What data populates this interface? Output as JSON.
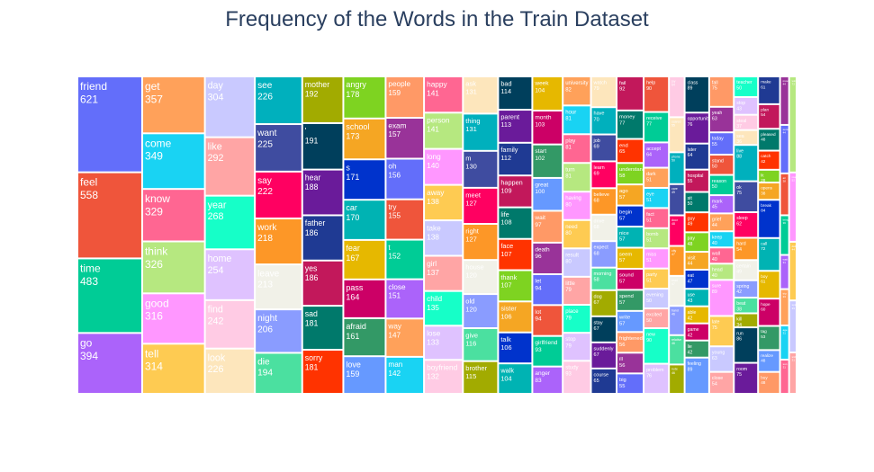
{
  "chart_data": {
    "type": "treemap",
    "title": "Frequency of the Words in the Train Dataset",
    "colors": [
      "#636efa",
      "#EF553B",
      "#00cc96",
      "#ab63fa",
      "#FFA15A",
      "#19d3f3",
      "#FF6692",
      "#B6E880",
      "#FF97FF",
      "#FECB52",
      "#c9c9ff",
      "#ffa5a5",
      "#16ffc8",
      "#dfc2ff",
      "#ffcbe4",
      "#fde6bc",
      "#00b0bd",
      "#3f4ca0",
      "#ff0061",
      "#fd9727",
      "#f1f1e8",
      "#8a9cff",
      "#4be0a0",
      "#a2ab00",
      "#003f5c",
      "#6a1b9a",
      "#1f3a93",
      "#c2185b",
      "#00796b",
      "#ff3300",
      "#7ed321",
      "#f5a623",
      "#0033cc",
      "#00b3b3",
      "#e6b800",
      "#cc0066",
      "#339966",
      "#6699ff",
      "#ff9966",
      "#993399"
    ],
    "items": [
      {
        "word": "friend",
        "count": 621
      },
      {
        "word": "feel",
        "count": 558
      },
      {
        "word": "time",
        "count": 483
      },
      {
        "word": "go",
        "count": 394
      },
      {
        "word": "get",
        "count": 357
      },
      {
        "word": "come",
        "count": 349
      },
      {
        "word": "know",
        "count": 329
      },
      {
        "word": "think",
        "count": 326
      },
      {
        "word": "good",
        "count": 316
      },
      {
        "word": "tell",
        "count": 314
      },
      {
        "word": "day",
        "count": 304
      },
      {
        "word": "like",
        "count": 292
      },
      {
        "word": "year",
        "count": 268
      },
      {
        "word": "home",
        "count": 254
      },
      {
        "word": "find",
        "count": 242
      },
      {
        "word": "look",
        "count": 226
      },
      {
        "word": "see",
        "count": 226
      },
      {
        "word": "want",
        "count": 225
      },
      {
        "word": "say",
        "count": 222
      },
      {
        "word": "work",
        "count": 218
      },
      {
        "word": "leave",
        "count": 213
      },
      {
        "word": "night",
        "count": 206
      },
      {
        "word": "die",
        "count": 194
      },
      {
        "word": "mother",
        "count": 192
      },
      {
        "word": "'",
        "count": 191
      },
      {
        "word": "hear",
        "count": 188
      },
      {
        "word": "father",
        "count": 186
      },
      {
        "word": "yes",
        "count": 186
      },
      {
        "word": "sad",
        "count": 181
      },
      {
        "word": "sorry",
        "count": 181
      },
      {
        "word": "angry",
        "count": 178
      },
      {
        "word": "school",
        "count": 173
      },
      {
        "word": "s",
        "count": 171
      },
      {
        "word": "car",
        "count": 170
      },
      {
        "word": "fear",
        "count": 167
      },
      {
        "word": "pass",
        "count": 164
      },
      {
        "word": "afraid",
        "count": 161
      },
      {
        "word": "love",
        "count": 159
      },
      {
        "word": "people",
        "count": 159
      },
      {
        "word": "exam",
        "count": 157
      },
      {
        "word": "oh",
        "count": 156
      },
      {
        "word": "try",
        "count": 155
      },
      {
        "word": "t",
        "count": 152
      },
      {
        "word": "close",
        "count": 151
      },
      {
        "word": "way",
        "count": 147
      },
      {
        "word": "man",
        "count": 142
      },
      {
        "word": "happy",
        "count": 141
      },
      {
        "word": "person",
        "count": 141
      },
      {
        "word": "long",
        "count": 140
      },
      {
        "word": "away",
        "count": 138
      },
      {
        "word": "take",
        "count": 138
      },
      {
        "word": "girl",
        "count": 137
      },
      {
        "word": "child",
        "count": 135
      },
      {
        "word": "lose",
        "count": 133
      },
      {
        "word": "boyfriend",
        "count": 132
      },
      {
        "word": "ask",
        "count": 131
      },
      {
        "word": "thing",
        "count": 131
      },
      {
        "word": "m",
        "count": 130
      },
      {
        "word": "meet",
        "count": 127
      },
      {
        "word": "right",
        "count": 127
      },
      {
        "word": "house",
        "count": 120
      },
      {
        "word": "old",
        "count": 120
      },
      {
        "word": "give",
        "count": 116
      },
      {
        "word": "brother",
        "count": 115
      },
      {
        "word": "bad",
        "count": 114
      },
      {
        "word": "parent",
        "count": 113
      },
      {
        "word": "family",
        "count": 112
      },
      {
        "word": "happen",
        "count": 109
      },
      {
        "word": "life",
        "count": 108
      },
      {
        "word": "face",
        "count": 107
      },
      {
        "word": "thank",
        "count": 107
      },
      {
        "word": "sister",
        "count": 106
      },
      {
        "word": "talk",
        "count": 106
      },
      {
        "word": "walk",
        "count": 104
      },
      {
        "word": "week",
        "count": 104
      },
      {
        "word": "month",
        "count": 103
      },
      {
        "word": "start",
        "count": 102
      },
      {
        "word": "great",
        "count": 100
      },
      {
        "word": "wait",
        "count": 97
      },
      {
        "word": "death",
        "count": 96
      },
      {
        "word": "let",
        "count": 94
      },
      {
        "word": "lot",
        "count": 94
      },
      {
        "word": "girlfriend",
        "count": 93
      },
      {
        "word": "anger",
        "count": 83
      },
      {
        "word": "university",
        "count": 82
      },
      {
        "word": "hour",
        "count": 81
      },
      {
        "word": "play",
        "count": 81
      },
      {
        "word": "turn",
        "count": 81
      },
      {
        "word": "having",
        "count": 80
      },
      {
        "word": "need",
        "count": 80
      },
      {
        "word": "result",
        "count": 80
      },
      {
        "word": "little",
        "count": 79
      },
      {
        "word": "place",
        "count": 79
      },
      {
        "word": "stop",
        "count": 79
      },
      {
        "word": "study",
        "count": 93
      },
      {
        "word": "watch",
        "count": 79
      },
      {
        "word": "have",
        "count": 70
      },
      {
        "word": "job",
        "count": 69
      },
      {
        "word": "learn",
        "count": 69
      },
      {
        "word": "believe",
        "count": 68
      },
      {
        "word": "drive",
        "count": 68
      },
      {
        "word": "expect",
        "count": 68
      },
      {
        "word": "morning",
        "count": 58
      },
      {
        "word": "dog",
        "count": 67
      },
      {
        "word": "stay",
        "count": 67
      },
      {
        "word": "suddenly",
        "count": 67
      },
      {
        "word": "course",
        "count": 65
      },
      {
        "word": "fail",
        "count": 92
      },
      {
        "word": "money",
        "count": 77
      },
      {
        "word": "end",
        "count": 65
      },
      {
        "word": "understand",
        "count": 58
      },
      {
        "word": "ago",
        "count": 57
      },
      {
        "word": "begin",
        "count": 57
      },
      {
        "word": "nice",
        "count": 57
      },
      {
        "word": "seem",
        "count": 57
      },
      {
        "word": "sound",
        "count": 57
      },
      {
        "word": "spend",
        "count": 57
      },
      {
        "word": "write",
        "count": 57
      },
      {
        "word": "frightened",
        "count": 56
      },
      {
        "word": "ill",
        "count": 56
      },
      {
        "word": "big",
        "count": 55
      },
      {
        "word": "help",
        "count": 90
      },
      {
        "word": "receive",
        "count": 77
      },
      {
        "word": "accept",
        "count": 64
      },
      {
        "word": "dark",
        "count": 51
      },
      {
        "word": "eye",
        "count": 51
      },
      {
        "word": "fact",
        "count": 51
      },
      {
        "word": "bomb",
        "count": 51
      },
      {
        "word": "miss",
        "count": 51
      },
      {
        "word": "party",
        "count": 51
      },
      {
        "word": "evening",
        "count": 50
      },
      {
        "word": "excited",
        "count": 50
      },
      {
        "word": "new",
        "count": 90
      },
      {
        "word": "problem",
        "count": 76
      },
      {
        "word": "joy",
        "count": 64
      },
      {
        "word": "scared",
        "count": 55
      },
      {
        "word": "phone",
        "count": 50
      },
      {
        "word": "care",
        "count": 49
      },
      {
        "word": "door",
        "count": 48
      },
      {
        "word": "city",
        "count": 47
      },
      {
        "word": "read",
        "count": 47
      },
      {
        "word": "hand",
        "count": 46
      },
      {
        "word": "relative",
        "count": 46
      },
      {
        "word": "rude",
        "count": 46
      },
      {
        "word": "class",
        "count": 89
      },
      {
        "word": "opportunity",
        "count": 76
      },
      {
        "word": "later",
        "count": 64
      },
      {
        "word": "hospital",
        "count": 55
      },
      {
        "word": "sit",
        "count": 50
      },
      {
        "word": "guy",
        "count": 49
      },
      {
        "word": "pay",
        "count": 48
      },
      {
        "word": "visit",
        "count": 44
      },
      {
        "word": "eat",
        "count": 47
      },
      {
        "word": "use",
        "count": 43
      },
      {
        "word": "able",
        "count": 42
      },
      {
        "word": "game",
        "count": 42
      },
      {
        "word": "lie",
        "count": 42
      },
      {
        "word": "feeling",
        "count": 89
      },
      {
        "word": "fall",
        "count": 75
      },
      {
        "word": "yeah",
        "count": 63
      },
      {
        "word": "today",
        "count": 55
      },
      {
        "word": "stand",
        "count": 50
      },
      {
        "word": "reason",
        "count": 50
      },
      {
        "word": "mark",
        "count": 45
      },
      {
        "word": "grief",
        "count": 44
      },
      {
        "word": "keep",
        "count": 40
      },
      {
        "word": "wall",
        "count": 40
      },
      {
        "word": "head",
        "count": 40
      },
      {
        "word": "sure",
        "count": 89
      },
      {
        "word": "late",
        "count": 75
      },
      {
        "word": "young",
        "count": 63
      },
      {
        "word": "close",
        "count": 54
      },
      {
        "word": "teacher",
        "count": 50
      },
      {
        "word": "stop",
        "count": 43
      },
      {
        "word": "steal",
        "count": 37
      },
      {
        "word": "sea",
        "count": 36
      },
      {
        "word": "live",
        "count": 88
      },
      {
        "word": "ok",
        "count": 75
      },
      {
        "word": "sleep",
        "count": 62
      },
      {
        "word": "hard",
        "count": 54
      },
      {
        "word": "certain",
        "count": 49
      },
      {
        "word": "spring",
        "count": 42
      },
      {
        "word": "beat",
        "count": 38
      },
      {
        "word": "kill",
        "count": 34
      },
      {
        "word": "run",
        "count": 86
      },
      {
        "word": "room",
        "count": 75
      },
      {
        "word": "make",
        "count": 61
      },
      {
        "word": "plan",
        "count": 54
      },
      {
        "word": "pleased",
        "count": 48
      },
      {
        "word": "catch",
        "count": 42
      },
      {
        "word": "lit",
        "count": 28
      },
      {
        "word": "opens",
        "count": 38
      },
      {
        "word": "break",
        "count": 84
      },
      {
        "word": "call",
        "count": 72
      },
      {
        "word": "boy",
        "count": 61
      },
      {
        "word": "hope",
        "count": 60
      },
      {
        "word": "tag",
        "count": 53
      },
      {
        "word": "realize",
        "count": 48
      },
      {
        "word": "buy",
        "count": 48
      },
      {
        "word": "move",
        "count": 44
      },
      {
        "word": "sense",
        "count": 44
      },
      {
        "word": "air",
        "count": 38
      },
      {
        "word": "bring",
        "count": 36
      },
      {
        "word": "wait",
        "count": 31
      },
      {
        "word": "trip",
        "count": 33
      },
      {
        "word": "age",
        "count": 31
      },
      {
        "word": "son",
        "count": 31
      },
      {
        "word": "win",
        "count": 72
      },
      {
        "word": "road",
        "count": 52
      },
      {
        "word": "delight",
        "count": 44
      },
      {
        "word": "spirit",
        "count": 39
      },
      {
        "word": "sick",
        "count": 31
      }
    ]
  }
}
